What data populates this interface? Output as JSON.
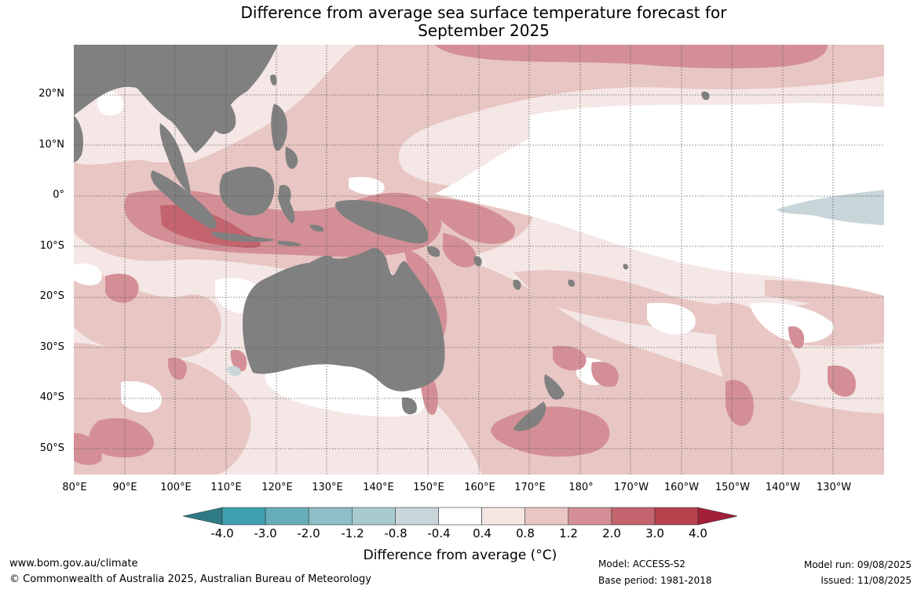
{
  "title_line1": "Difference from average sea surface temperature forecast for",
  "title_line2": "September 2025",
  "lat_labels": [
    "20°N",
    "10°N",
    "0°",
    "10°S",
    "20°S",
    "30°S",
    "40°S",
    "50°S"
  ],
  "lon_labels": [
    "80°E",
    "90°E",
    "100°E",
    "110°E",
    "120°E",
    "130°E",
    "140°E",
    "150°E",
    "160°E",
    "170°E",
    "180°",
    "170°W",
    "160°W",
    "150°W",
    "140°W",
    "130°W"
  ],
  "colorbar": {
    "title": "Difference from average (°C)",
    "tick_labels": [
      "-4.0",
      "-3.0",
      "-2.0",
      "-1.2",
      "-0.8",
      "-0.4",
      "0.4",
      "0.8",
      "1.2",
      "2.0",
      "3.0",
      "4.0"
    ],
    "colors": [
      "#2e7b86",
      "#3ea0b1",
      "#67aebb",
      "#8ebec6",
      "#a9cbd0",
      "#c8d6d9",
      "#ffffff",
      "#f5e6e4",
      "#e8c6c3",
      "#d38f95",
      "#c4646e",
      "#b8414e",
      "#a3203a"
    ],
    "levels": [
      -4.0,
      -3.0,
      -2.0,
      -1.2,
      -0.8,
      -0.4,
      0.4,
      0.8,
      1.2,
      2.0,
      3.0,
      4.0
    ]
  },
  "map_colors": {
    "land": "#808080",
    "ocean_base": "#f4e7e5",
    "neutral": "#ffffff",
    "warm_1": "#e8c6c3",
    "warm_2": "#d38f95",
    "warm_3": "#c4646e",
    "cool_1": "#c8d6d9",
    "gridline": "#444444"
  },
  "footer": {
    "website": "www.bom.gov.au/climate",
    "copyright": "© Commonwealth of Australia 2025, Australian Bureau of Meteorology",
    "model": "Model: ACCESS-S2",
    "base_period": "Base period: 1981-2018",
    "model_run": "Model run: 09/08/2025",
    "issued": "Issued: 11/08/2025"
  }
}
